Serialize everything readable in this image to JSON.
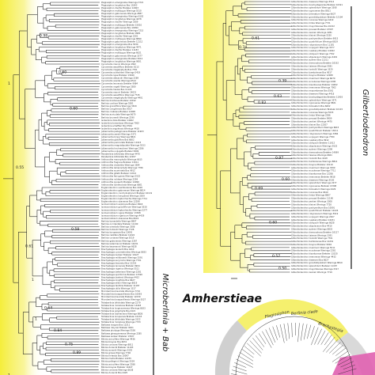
{
  "colors": {
    "highlight_left": "#f5ee3a",
    "highlight_right": "#f7f26a",
    "branch": "#1a1a1a",
    "circle_pink": "#e060b0",
    "circle_grey": "#c8c8c8",
    "circle_yellow": "#f3ec4a"
  },
  "labels": {
    "tribe": "Amherstieae",
    "clade_right": "Gilbertiodendron",
    "clade_left": "Microberlinia + Bab"
  },
  "left_support": [
    {
      "value": "0.98",
      "row": 11
    },
    {
      "value": "1",
      "row": 28
    },
    {
      "value": "0.60",
      "row": 24
    },
    {
      "value": "0.60",
      "row": 37
    },
    {
      "value": "0.55",
      "row": 58
    },
    {
      "value": "0.58",
      "row": 80
    },
    {
      "value": "0.61",
      "row": 86
    },
    {
      "value": "1",
      "row": 98
    },
    {
      "value": "0.64",
      "row": 108
    },
    {
      "value": "1",
      "row": 112
    },
    {
      "value": "0.84",
      "row": 116
    },
    {
      "value": "0.75",
      "row": 121
    },
    {
      "value": "0.89",
      "row": 124
    },
    {
      "value": "1",
      "row": 132
    }
  ],
  "right_support": [
    {
      "value": "0.61",
      "row": 11
    },
    {
      "value": "0.74",
      "row": 14
    },
    {
      "value": "0.39",
      "row": 25
    },
    {
      "value": "0.63",
      "row": 30
    },
    {
      "value": "0.83",
      "row": 32
    },
    {
      "value": "0.97",
      "row": 50
    },
    {
      "value": "0.60",
      "row": 57
    },
    {
      "value": "0.69",
      "row": 60
    },
    {
      "value": "0.60",
      "row": 71
    },
    {
      "value": "0.57",
      "row": 82
    },
    {
      "value": "0.50",
      "row": 86
    }
  ],
  "left_tips": [
    "Plagiosiphon emarginatus Wieringa 3721",
    "Plagiosiphon longitubus Bos 11802",
    "Plagiosiphon discifer Breteler 12903",
    "Plagiosiphon multijugus Wieringa 5510",
    "Plagiosiphon gabonensis Wieringa 2887",
    "Plagiosiphon emarginatus Wieringa 6102",
    "Plagiosiphon longitubus Wieringa 4478",
    "Plagiosiphon discifer Wieringa 3309",
    "Plagiosiphon multijugus Breteler 15010",
    "Plagiosiphon gabonensis Bos 10094",
    "Plagiosiphon emarginatus Wieringa 7215",
    "Plagiosiphon longitubus Breteler 9981",
    "Plagiosiphon discifer Wieringa 2201",
    "Plagiosiphon multijugus Wieringa 8890",
    "Plagiosiphon gabonensis Breteler 12112",
    "Plagiosiphon emarginatus Bos 5530",
    "Plagiosiphon longitubus Wieringa 4471",
    "Plagiosiphon discifer Breteler 11183",
    "Plagiosiphon multijugus Wieringa 6621",
    "Plagiosiphon gabonensis Wieringa 3377",
    "Plagiosiphon emarginatus Breteler 5012",
    "Plagiosiphon longitubus Wieringa 9001",
    "Cynometra mannii Wieringa 4302",
    "Cynometra sessiliflora Breteler 8113",
    "Cynometra megalophylla Bos 7701",
    "Cynometra schlechteri Wieringa 5419",
    "Cynometra lujae Breteler 13020",
    "Cynometra alexandri Wieringa 2289",
    "Cynometra ananta Wieringa 6512",
    "Cynometra leonensis Breteler 9984",
    "Cynometra vogelii Wieringa 3380",
    "Cynometra hankei Bos 11120",
    "Cynometra mannii Breteler 14021",
    "Cynometra sessiliflora Wieringa 7745",
    "Cynometra megalophylla Wieringa 4401",
    "Berlinia bracteosa Breteler 10192",
    "Berlinia confusa Wieringa 5581",
    "Berlinia grandiflora Wieringa 3320",
    "Berlinia congolensis Bos 9017",
    "Berlinia craibiana Breteler 12008",
    "Berlinia auriculata Wieringa 6670",
    "Berlinia bruneelii Wieringa 2290",
    "Isoberlinia doka Breteler 14402",
    "Isoberlinia tomentosa Wieringa 7002",
    "Isoberlinia scheffleri Bos 5561",
    "Isoberlinia angolensis Wieringa 4418",
    "Julbernardia pellegriniana Breteler 11903",
    "Julbernardia seretii Wieringa 3371",
    "Julbernardia brieyi Wieringa 8821",
    "Julbernardia globiflora Bos 6602",
    "Julbernardia paniculata Breteler 10115",
    "Julbernardia magnistipulata Wieringa 5533",
    "Julbernardia hochreutineri Wieringa 2286",
    "Julbernardia unijugata Breteler 9909",
    "Paraberlinia bifoliolata Wieringa 4470",
    "Paraberlinia bifoliolata Bos 12207",
    "Anthonotha macrophylla Wieringa 6615",
    "Anthonotha fragrans Breteler 13011",
    "Anthonotha cladantha Wieringa 3384",
    "Anthonotha lamprophylla Wieringa 7780",
    "Anthonotha acuminata Bos 9912",
    "Anthonotha gilletii Breteler 11012",
    "Anthonotha ferruginea Wieringa 5522",
    "Anthonotha noldeae Wieringa 2299",
    "Anthonotha pynaertii Breteler 14099",
    "Anthonotha xanthoclada Wieringa 6601",
    "Englerodendron usambarense Bos 4418",
    "Englerodendron gabonense Wieringa 8814",
    "Englerodendron conchyliophorum Breteler 10119",
    "Englerodendron korupense Wieringa 3309",
    "Englerodendron leptorrhachis Wieringa 7711",
    "Englerodendron obanense Bos 12206",
    "Isomacrolobium explicans Breteler 9918",
    "Isomacrolobium graciliflorum Wieringa 5530",
    "Isomacrolobium leptorrhachis Wieringa 2277",
    "Isomacrolobium vignei Breteler 13308",
    "Isomacrolobium nigericum Wieringa 4429",
    "Isomacrolobium obanense Bos 6619",
    "Berlinia tomentella Wieringa 8807",
    "Berlinia occidentalis Breteler 11190",
    "Berlinia orientalis Wieringa 3308",
    "Berlinia hollandii Wieringa 7728",
    "Berlinia korupensis Bos 10091",
    "Berlinia razzifera Breteler 12224",
    "Berlinia coriacea Wieringa 5519",
    "Berlinia gabonensis Wieringa 2267",
    "Berlinia ledermannii Breteler 14431",
    "Berlinia tessmannii Wieringa 6628",
    "Brachystegia laurentii Bos 4410",
    "Brachystegia cynometroides Wieringa 8833",
    "Brachystegia zenkeri Breteler 10127",
    "Brachystegia mildbraedii Wieringa 3391",
    "Brachystegia eurycoma Wieringa 7701",
    "Brachystegia kennedyi Bos 12219",
    "Brachystegia leonensis Breteler 9904",
    "Brachystegia nigerica Wieringa 5511",
    "Brachystegia bakeriana Wieringa 2281",
    "Brachystegia spiciformis Breteler 13320",
    "Brachystegia boehmii Wieringa 4432",
    "Brachystegia longifolia Bos 6627",
    "Brachystegia allenii Wieringa 8819",
    "Brachystegia taxifolia Breteler 11187",
    "Brachystegia utilis Wieringa 3317",
    "Microberlinia bisulcata Wieringa 7719",
    "Microberlinia brazzavillensis Bos 10093",
    "Microberlinia bisulcata Breteler 12230",
    "Microberlinia brazzavillensis Wieringa 5527",
    "Tetraberlinia bifoliolata Wieringa 2279",
    "Tetraberlinia moreliana Breteler 14418",
    "Tetraberlinia longiracemosa Wieringa 6633",
    "Tetraberlinia polyphylla Bos 4421",
    "Tetraberlinia tubmaniana Wieringa 8826",
    "Tetraberlinia korupensis Breteler 10133",
    "Tetraberlinia bifoliolata Wieringa 3322",
    "Tetraberlinia moreliana Wieringa 7733",
    "Baikiaea insignis Bos 12211",
    "Baikiaea robynsii Breteler 9921",
    "Baikiaea plurijuga Wieringa 5536",
    "Baikiaea ghesquiereana Wieringa 2285",
    "Baikiaea zenkeri Breteler 13327",
    "Bikinia aciculifera Wieringa 4436",
    "Bikinia breynei Bos 6631",
    "Bikinia coriacea Wieringa 8811",
    "Bikinia durandii Breteler 11193",
    "Bikinia evrardii Wieringa 3325",
    "Bikinia grisea Wieringa 7740",
    "Bikinia le-testui Bos 10097",
    "Bikinia media Breteler 12235",
    "Bikinia pellegrinii Wieringa 5539",
    "Bikinia aciculifera Wieringa 2288",
    "Bikinia breynei Breteler 14427",
    "Bikinia coriacea Wieringa 6638",
    "Bikinia durandii Bos 4425"
  ],
  "right_tips": [
    "Gilbertiodendron dewevrei Wieringa 5512",
    "Gilbertiodendron brachystegioides Breteler 10321",
    "Gilbertiodendron splendidum Wieringa 3308",
    "Gilbertiodendron ogoouense Bos 8811",
    "Gilbertiodendron bilineatum Wieringa 6627",
    "Gilbertiodendron grandistipulatum Breteler 12104",
    "Gilbertiodendron ivorense Wieringa 4419",
    "Gilbertiodendron limba Wieringa 7731",
    "Gilbertiodendron mayombense Bos 10212",
    "Gilbertiodendron preussii Breteler 13307",
    "Gilbertiodendron zenkeri Wieringa 2281",
    "Gilbertiodendron klainei Wieringa 5530",
    "Gilbertiodendron pachyanthum Breteler 9915",
    "Gilbertiodendron quadrifolium Wieringa 6619",
    "Gilbertiodendron robynsianum Bos 11181",
    "Gilbertiodendron unijugum Wieringa 3377",
    "Gilbertiodendron newberyi Breteler 14022",
    "Gilbertiodendron obliquum Wieringa 7702",
    "Gilbertiodendron stipulaceum Wieringa 4401",
    "Gilbertiodendron aylmeri Bos 12211",
    "Gilbertiodendron demonstrans Breteler 10192",
    "Gilbertiodendron taiense Wieringa 5581",
    "Gilbertiodendron tonkolili Wieringa 3320",
    "Gilbertiodendron bambolense Bos 9017",
    "Gilbertiodendron breynei Breteler 12008",
    "Gilbertiodendron maximum Wieringa 6670",
    "Gilbertiodendron ecoukense Wieringa 2290",
    "Gilbertiodendron kisantuense Breteler 14402",
    "Gilbertiodendron imenoense Wieringa 7002",
    "Gilbertiodendron mayombense Bos 5561",
    "Gilbertiodendron dewevrei Wieringa 4418",
    "Gilbertiodendron brachystegioides Breteler 11903",
    "Gilbertiodendron splendidum Wieringa 3371",
    "Gilbertiodendron ogoouense Wieringa 8821",
    "Gilbertiodendron bilineatum Bos 6602",
    "Gilbertiodendron grandistipulatum Breteler 10115",
    "Gilbertiodendron ivorense Wieringa 5533",
    "Gilbertiodendron limba Wieringa 2286",
    "Gilbertiodendron preussii Breteler 9909",
    "Gilbertiodendron zenkeri Wieringa 4470",
    "Gilbertiodendron klainei Bos 12207",
    "Gilbertiodendron pachyanthum Wieringa 6615",
    "Gilbertiodendron quadrifolium Breteler 13011",
    "Gilbertiodendron robynsianum Wieringa 3384",
    "Gilbertiodendron unijugum Wieringa 7780",
    "Gilbertiodendron newberyi Bos 9912",
    "Gilbertiodendron obliquum Breteler 11012",
    "Gilbertiodendron stipulaceum Wieringa 5522",
    "Gilbertiodendron aylmeri Wieringa 2299",
    "Gilbertiodendron demonstrans Breteler 14099",
    "Gilbertiodendron taiense Wieringa 6601",
    "Gilbertiodendron tonkolili Bos 4418",
    "Gilbertiodendron bambolense Wieringa 8814",
    "Gilbertiodendron breynei Breteler 10119",
    "Gilbertiodendron maximum Wieringa 3309",
    "Gilbertiodendron ecoukense Wieringa 7711",
    "Gilbertiodendron kisantuense Bos 12206",
    "Gilbertiodendron imenoense Breteler 9918",
    "Gilbertiodendron dewevrei Wieringa 5530",
    "Gilbertiodendron splendidum Wieringa 2277",
    "Gilbertiodendron ogoouense Breteler 13308",
    "Gilbertiodendron bilineatum Wieringa 4429",
    "Gilbertiodendron ivorense Bos 6619",
    "Gilbertiodendron limba Wieringa 8807",
    "Gilbertiodendron preussii Breteler 11190",
    "Gilbertiodendron zenkeri Wieringa 3308",
    "Gilbertiodendron klainei Wieringa 7728",
    "Gilbertiodendron pachyanthum Bos 10091",
    "Gilbertiodendron quadrifolium Breteler 12224",
    "Gilbertiodendron robynsianum Wieringa 5519",
    "Gilbertiodendron unijugum Wieringa 2267",
    "Gilbertiodendron newberyi Breteler 14431",
    "Gilbertiodendron obliquum Wieringa 6628",
    "Gilbertiodendron stipulaceum Bos 4410",
    "Gilbertiodendron aylmeri Wieringa 8833",
    "Gilbertiodendron demonstrans Breteler 10127",
    "Gilbertiodendron taiense Wieringa 3391",
    "Gilbertiodendron tonkolili Wieringa 7701",
    "Gilbertiodendron bambolense Bos 12219",
    "Gilbertiodendron breynei Breteler 9904",
    "Gilbertiodendron maximum Wieringa 5511",
    "Gilbertiodendron ecoukense Wieringa 2281",
    "Gilbertiodendron kisantuense Breteler 13320",
    "Gilbertiodendron imenoense Wieringa 4432",
    "Gilbertiodendron dewevrei Bos 6627",
    "Gilbertiodendron grandistipulatum Wieringa 8819",
    "Gilbertiodendron splendidum Breteler 11187",
    "Gilbertiodendron mayombense Wieringa 3317",
    "Gilbertiodendron zenkeri Wieringa 7719"
  ],
  "circle_labels": [
    "Plagiosiphon",
    "Berlinia clade",
    "Brachystegia"
  ]
}
